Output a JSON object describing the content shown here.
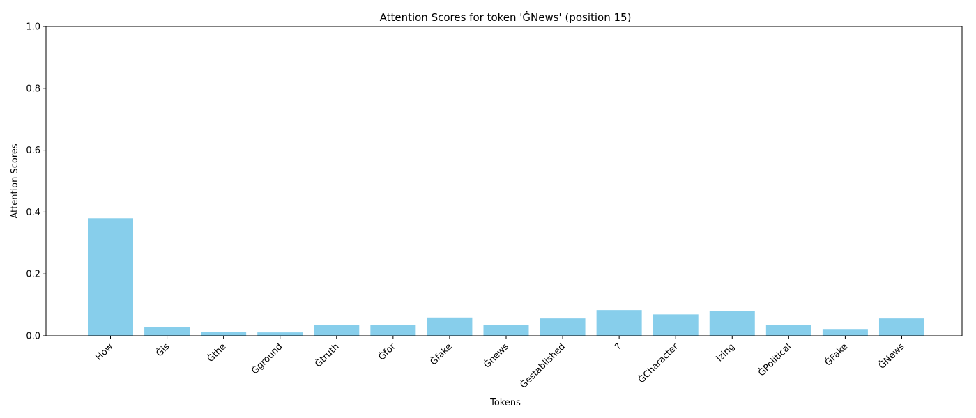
{
  "chart_data": {
    "type": "bar",
    "title": "Attention Scores for token 'ĠNews' (position 15)",
    "xlabel": "Tokens",
    "ylabel": "Attention Scores",
    "ylim": [
      0,
      1
    ],
    "yticks": [
      "0.0",
      "0.2",
      "0.4",
      "0.6",
      "0.8",
      "1.0"
    ],
    "categories": [
      "How",
      "Ġis",
      "Ġthe",
      "Ġground",
      "Ġtruth",
      "Ġfor",
      "Ġfake",
      "Ġnews",
      "Ġestablished",
      "?",
      "ĠCharacter",
      "izing",
      "ĠPolitical",
      "ĠFake",
      "ĠNews"
    ],
    "values": [
      0.38,
      0.027,
      0.013,
      0.011,
      0.036,
      0.034,
      0.059,
      0.036,
      0.056,
      0.083,
      0.069,
      0.079,
      0.036,
      0.022,
      0.056
    ],
    "bar_color": "#87CEEB",
    "grid": false,
    "legend": "none"
  }
}
